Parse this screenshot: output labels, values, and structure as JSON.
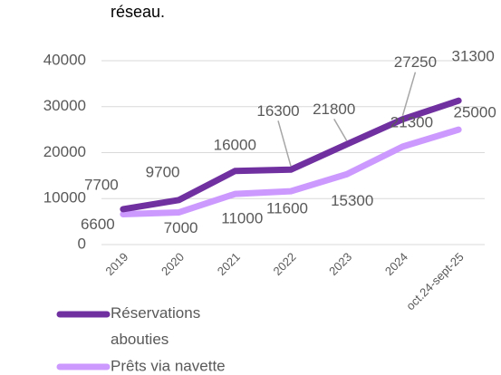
{
  "chart_data": {
    "type": "line",
    "title": "réseau.",
    "categories": [
      "2019",
      "2020",
      "2021",
      "2022",
      "2023",
      "2024",
      "oct.24-sept-25"
    ],
    "series": [
      {
        "name": "Réservations abouties",
        "color": "#7030a0",
        "values": [
          7700,
          9700,
          16000,
          16300,
          21800,
          27250,
          31300
        ]
      },
      {
        "name": "Prêts via navette",
        "color": "#cc99ff",
        "values": [
          6600,
          7000,
          11000,
          11600,
          15300,
          21300,
          25000
        ]
      }
    ],
    "ylim": [
      0,
      40000
    ],
    "yticks": [
      0,
      10000,
      20000,
      30000,
      40000
    ],
    "grid": true,
    "legend": "bottom-left"
  }
}
